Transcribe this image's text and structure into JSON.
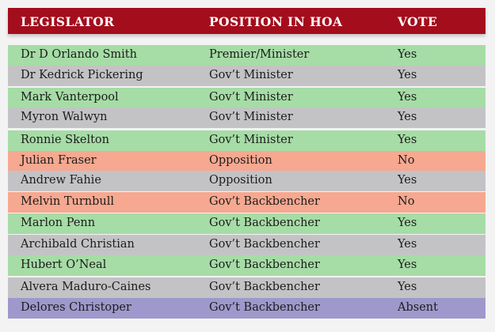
{
  "header": {
    "legislator": "LEGISLATOR",
    "position": "POSITION IN HOA",
    "vote": "VOTE"
  },
  "colors": {
    "header": "#a40d1c",
    "green": "#a6dca6",
    "grey": "#c3c3c6",
    "salmon": "#f6a890",
    "purple": "#9e98cc"
  },
  "rows": [
    {
      "name": "Dr D Orlando Smith",
      "position": "Premier/Minister",
      "vote": "Yes",
      "color": "green"
    },
    {
      "name": "Dr Kedrick Pickering",
      "position": "Gov’t Minister",
      "vote": "Yes",
      "color": "grey"
    },
    {
      "name": "Mark Vanterpool",
      "position": "Gov’t Minister",
      "vote": "Yes",
      "color": "green"
    },
    {
      "name": "Myron Walwyn",
      "position": "Gov’t Minister",
      "vote": "Yes",
      "color": "grey"
    },
    {
      "name": "Ronnie Skelton",
      "position": "Gov’t Minister",
      "vote": "Yes",
      "color": "green"
    },
    {
      "name": "Julian Fraser",
      "position": "Opposition",
      "vote": "No",
      "color": "salmon"
    },
    {
      "name": "Andrew Fahie",
      "position": "Opposition",
      "vote": "Yes",
      "color": "grey"
    },
    {
      "name": "Melvin Turnbull",
      "position": "Gov’t Backbencher",
      "vote": "No",
      "color": "salmon"
    },
    {
      "name": "Marlon Penn",
      "position": "Gov’t Backbencher",
      "vote": "Yes",
      "color": "green"
    },
    {
      "name": "Archibald Christian",
      "position": "Gov’t Backbencher",
      "vote": "Yes",
      "color": "grey"
    },
    {
      "name": "Hubert O’Neal",
      "position": "Gov’t Backbencher",
      "vote": "Yes",
      "color": "green"
    },
    {
      "name": "Alvera Maduro-Caines",
      "position": "Gov’t Backbencher",
      "vote": "Yes",
      "color": "grey"
    },
    {
      "name": "Delores Christoper",
      "position": "Gov’t Backbencher",
      "vote": "Absent",
      "color": "purple"
    }
  ]
}
